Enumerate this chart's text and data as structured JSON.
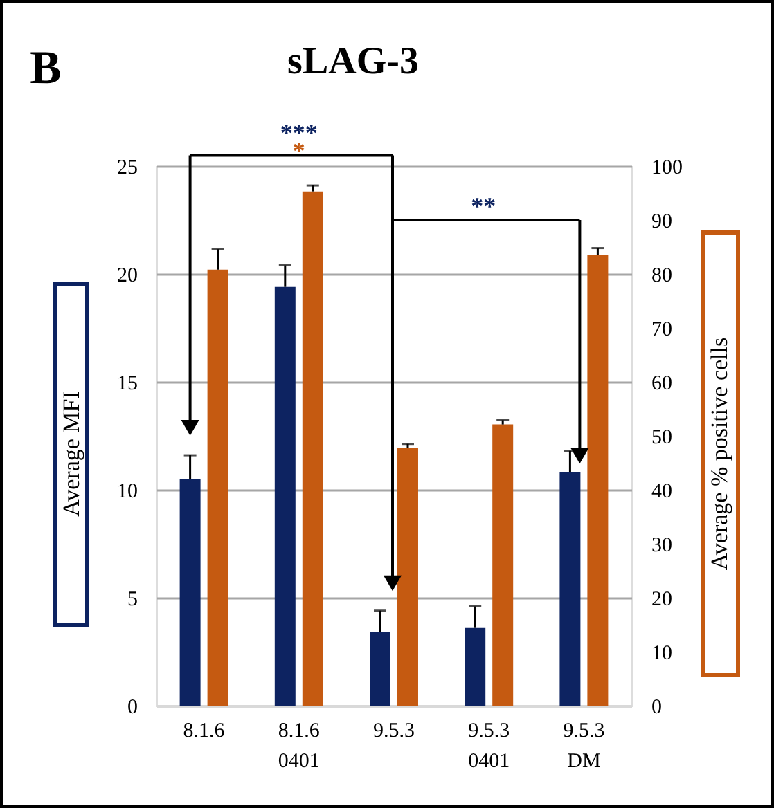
{
  "chart_data": {
    "type": "bar",
    "title": "sLAG-3",
    "categories": [
      "8.1.6",
      "8.1.6 0401",
      "9.5.3",
      "9.5.3 0401",
      "9.5.3 DM"
    ],
    "ylabel": "Average MFI",
    "y2label": "Average % positive cells",
    "series": [
      {
        "color": "#0d2361",
        "values": [
          10.5,
          19.4,
          3.4,
          3.6,
          10.8
        ],
        "errors": [
          [
            10.5,
            11.6
          ],
          [
            19.4,
            20.4
          ],
          [
            3.4,
            4.4
          ],
          [
            3.6,
            4.6
          ],
          [
            10.8,
            11.8
          ]
        ]
      },
      {
        "color": "#c55a11",
        "axis": "y2",
        "values": [
          80.8,
          95.3,
          47.7,
          52.1,
          83.5
        ],
        "errors": [
          [
            80.8,
            84.6
          ],
          [
            95.3,
            96.4
          ],
          [
            47.7,
            48.5
          ],
          [
            52.1,
            52.9
          ],
          [
            83.5,
            84.8
          ]
        ]
      }
    ],
    "ylim": [
      0,
      25
    ],
    "yticks": [
      0,
      5,
      10,
      15,
      20,
      25
    ],
    "y2lim": [
      0,
      100
    ],
    "y2ticks": [
      0,
      10,
      20,
      30,
      40,
      50,
      60,
      70,
      80,
      90,
      100
    ],
    "grid": "y",
    "annotations": [
      "B",
      "***",
      "*",
      "**"
    ]
  }
}
